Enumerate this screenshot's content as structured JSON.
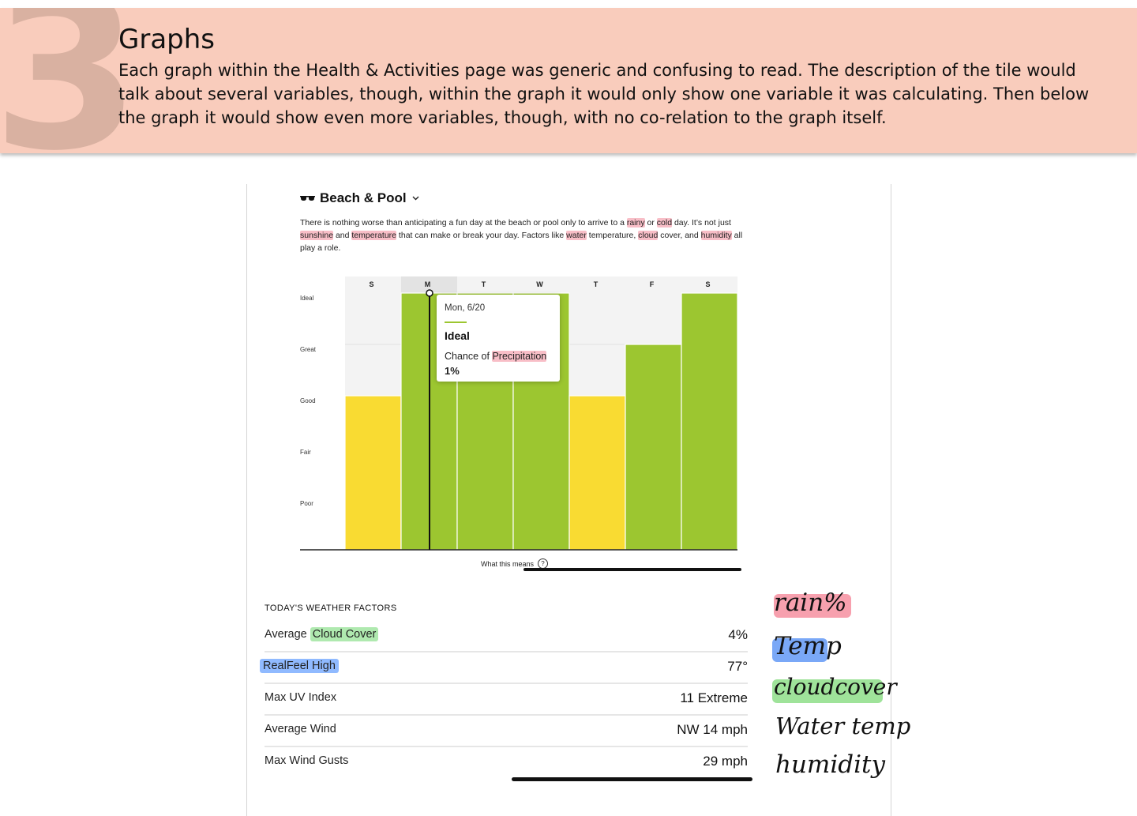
{
  "banner": {
    "number": "3",
    "title": "Graphs",
    "description": "Each graph within the Health & Activities page was generic and confusing to read. The description of the tile would talk about several variables, though, within the graph it would only show one variable it was calculating. Then below the graph it would show even more variables, though, with no co-relation to the graph itself."
  },
  "tile": {
    "title": "Beach & Pool",
    "description": {
      "p1": "There is nothing worse than anticipating a fun day at the beach or pool only to arrive to a ",
      "rainy": "rainy",
      "p2": " or ",
      "cold": "cold",
      "p3": " day. It’s not just ",
      "sunshine": "sunshine",
      "p4": " and ",
      "temperature": "temperature",
      "p5": " that can make or break your day. Factors like ",
      "water": "water",
      "p6": " temperature, ",
      "cloud": "cloud",
      "p7": " cover, and ",
      "humidity": "humidity",
      "p8": " all play a role."
    },
    "what_this_means": "What this means",
    "help_glyph": "?"
  },
  "chart_data": {
    "type": "bar",
    "categories": [
      "S",
      "M",
      "T",
      "W",
      "T",
      "F",
      "S"
    ],
    "levels": [
      "Poor",
      "Fair",
      "Good",
      "Great",
      "Ideal"
    ],
    "values": [
      "Good",
      "Ideal",
      "Ideal",
      "Ideal",
      "Good",
      "Great",
      "Ideal"
    ],
    "value_index": [
      3,
      5,
      5,
      5,
      3,
      4,
      5
    ],
    "ylim": [
      0,
      5
    ],
    "selected_index": 1,
    "colors": {
      "Good": "#f9db32",
      "Great": "#9cc630",
      "Ideal": "#9cc630",
      "selected_column": "#e3e3e3",
      "background_column": "#f3f3f3"
    },
    "tooltip": {
      "date": "Mon, 6/20",
      "rating": "Ideal",
      "chance_prefix": "Chance of ",
      "chance_highlight": "Precipitation",
      "value": "1%"
    }
  },
  "factors": {
    "title": "TODAY'S WEATHER FACTORS",
    "rows": [
      {
        "label": "Average ",
        "highlight": "Cloud Cover",
        "value": "4%"
      },
      {
        "label": "",
        "highlight": "RealFeel High",
        "value": "77°"
      },
      {
        "label": "Max UV Index",
        "highlight": "",
        "value": "11 Extreme"
      },
      {
        "label": "Average Wind",
        "highlight": "",
        "value": "NW 14 mph"
      },
      {
        "label": "Max Wind Gusts",
        "highlight": "",
        "value": "29 mph"
      }
    ]
  },
  "annotations": {
    "rain": "rain%",
    "temp": "Temp",
    "cloud": "cloudcover",
    "water": "Water temp",
    "humidity": "humidity",
    "colors": {
      "red": "#f7a0ae",
      "blue": "#7aa8f7",
      "green": "#9fe39a"
    }
  }
}
